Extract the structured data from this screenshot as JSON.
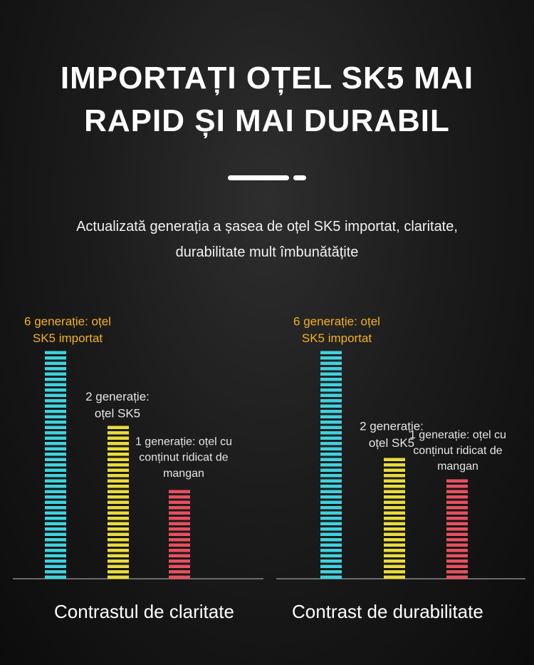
{
  "header": {
    "title_line1": "IMPORTAȚI OȚEL SK5 MAI",
    "title_line2": "RAPID ȘI MAI DURABIL",
    "subtitle_line1": "Actualizată generația a șasea de oțel SK5 importat, claritate,",
    "subtitle_line2": "durabilitate mult îmbunătățite"
  },
  "colors": {
    "gen6": "#3fd2df",
    "gen2": "#eadc3a",
    "gen1": "#e8505f",
    "label_gen6": "#f5b21c",
    "label_other": "#e6e6e6",
    "axis": "#888888"
  },
  "chart_data": [
    {
      "type": "bar",
      "title": "Contrastul de claritate",
      "categories": [
        "6 generație: oțel SK5 importat",
        "2 generație: oțel SK5",
        "1 generație: oțel cu conținut ridicat de mangan"
      ],
      "label_lines": [
        [
          "6 generație: oțel",
          "SK5 importat"
        ],
        [
          "2 generație:",
          "oțel SK5"
        ],
        [
          "1 generație: oțel cu",
          "conținut ridicat de",
          "mangan"
        ]
      ],
      "values": [
        100,
        67,
        41
      ],
      "ylim": [
        0,
        100
      ]
    },
    {
      "type": "bar",
      "title": "Contrast de durabilitate",
      "categories": [
        "6 generație: oțel SK5 importat",
        "2 generație: oțel SK5",
        "1 generație: oțel cu conținut ridicat de mangan"
      ],
      "label_lines": [
        [
          "6 generație: oțel",
          "SK5 importat"
        ],
        [
          "2 generație:",
          "oțel SK5"
        ],
        [
          "1 generație: oțel cu",
          "conținut ridicat de",
          "mangan"
        ]
      ],
      "values": [
        100,
        54,
        44
      ],
      "ylim": [
        0,
        100
      ]
    }
  ]
}
